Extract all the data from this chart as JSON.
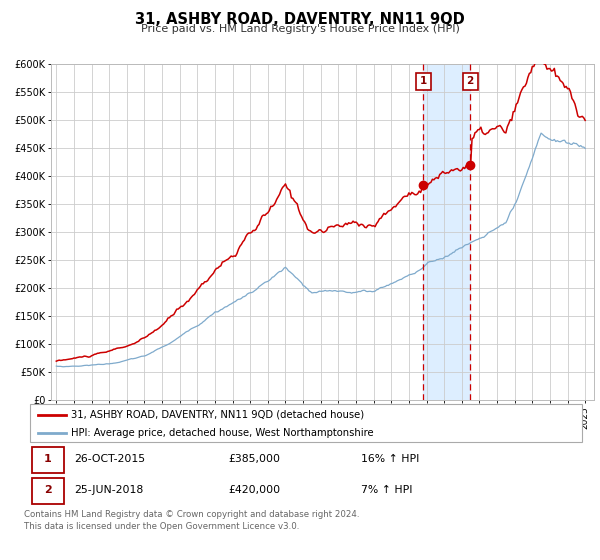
{
  "title": "31, ASHBY ROAD, DAVENTRY, NN11 9QD",
  "subtitle": "Price paid vs. HM Land Registry's House Price Index (HPI)",
  "legend_line1": "31, ASHBY ROAD, DAVENTRY, NN11 9QD (detached house)",
  "legend_line2": "HPI: Average price, detached house, West Northamptonshire",
  "marker1_date": "26-OCT-2015",
  "marker1_price": 385000,
  "marker1_label": "16% ↑ HPI",
  "marker2_date": "25-JUN-2018",
  "marker2_price": 420000,
  "marker2_label": "7% ↑ HPI",
  "marker1_x": 2015.82,
  "marker2_x": 2018.48,
  "footer1": "Contains HM Land Registry data © Crown copyright and database right 2024.",
  "footer2": "This data is licensed under the Open Government Licence v3.0.",
  "red_line_color": "#cc0000",
  "blue_line_color": "#7faacc",
  "bg_color": "#ffffff",
  "grid_color": "#cccccc",
  "shade_color": "#ddeeff",
  "ylim_max": 600000,
  "xlim_start": 1994.7,
  "xlim_end": 2025.5
}
